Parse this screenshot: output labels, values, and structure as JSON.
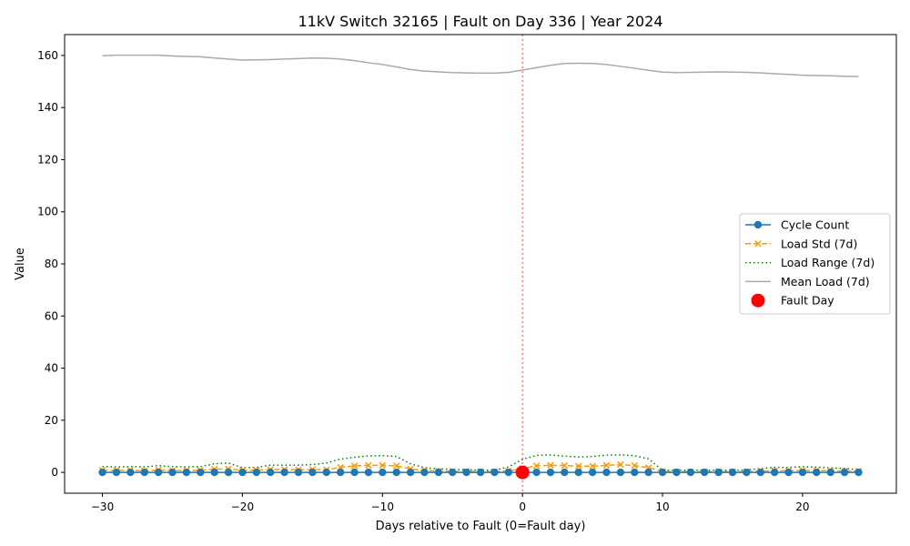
{
  "chart_data": {
    "type": "line",
    "title": "11kV Switch 32165 | Fault on Day 336 | Year 2024",
    "xlabel": "Days relative to Fault (0=Fault day)",
    "ylabel": "Value",
    "xlim": [
      -32.7,
      26.7
    ],
    "ylim": [
      -8.0,
      168.0
    ],
    "xticks": [
      -30,
      -20,
      -10,
      0,
      10,
      20
    ],
    "xtick_labels": [
      "−30",
      "−20",
      "−10",
      "0",
      "10",
      "20"
    ],
    "yticks": [
      0,
      20,
      40,
      60,
      80,
      100,
      120,
      140,
      160
    ],
    "grid": false,
    "legend_position": "center-right",
    "fault_line_x": 0,
    "colors": {
      "cycle_count": "#1f77b4",
      "load_std": "#ff9900",
      "load_range": "#008000",
      "mean_load": "#aaaaaa",
      "fault_day": "#ff0000",
      "fault_line": "#ff7f7f"
    },
    "x": [
      -30,
      -29,
      -28,
      -27,
      -26,
      -25,
      -24,
      -23,
      -22,
      -21,
      -20,
      -19,
      -18,
      -17,
      -16,
      -15,
      -14,
      -13,
      -12,
      -11,
      -10,
      -9,
      -8,
      -7,
      -6,
      -5,
      -4,
      -3,
      -2,
      -1,
      0,
      1,
      2,
      3,
      4,
      5,
      6,
      7,
      8,
      9,
      10,
      11,
      12,
      13,
      14,
      15,
      16,
      17,
      18,
      19,
      20,
      21,
      22,
      23,
      24
    ],
    "series": [
      {
        "name": "Cycle Count",
        "key": "cycle_count",
        "values": [
          0,
          0,
          0,
          0,
          0,
          0,
          0,
          0,
          0,
          0,
          0,
          0,
          0,
          0,
          0,
          0,
          0,
          0,
          0,
          0,
          0,
          0,
          0,
          0,
          0,
          0,
          0,
          0,
          0,
          0,
          0,
          0,
          0,
          0,
          0,
          0,
          0,
          0,
          0,
          0,
          0,
          0,
          0,
          0,
          0,
          0,
          0,
          0,
          0,
          0,
          0,
          0,
          0,
          0,
          0
        ]
      },
      {
        "name": "Load Std (7d)",
        "key": "load_std",
        "values": [
          0.8,
          0.7,
          0.8,
          0.6,
          0.9,
          0.7,
          0.7,
          0.8,
          1.2,
          1.3,
          0.8,
          0.8,
          1.1,
          1.1,
          1.0,
          1.1,
          1.0,
          1.9,
          2.5,
          2.7,
          2.7,
          2.5,
          1.3,
          0.7,
          0.5,
          0.4,
          0.4,
          0.3,
          0.3,
          0.5,
          1.5,
          2.5,
          2.7,
          2.6,
          2.4,
          2.4,
          2.7,
          3.0,
          2.6,
          1.8,
          0.4,
          0.3,
          0.3,
          0.3,
          0.3,
          0.3,
          0.3,
          0.5,
          0.6,
          0.6,
          0.7,
          0.7,
          0.6,
          0.5,
          0.5
        ]
      },
      {
        "name": "Load Range (7d)",
        "key": "load_range",
        "values": [
          2.2,
          2.1,
          2.2,
          2.1,
          2.6,
          2.2,
          2.1,
          2.2,
          3.3,
          3.6,
          1.8,
          1.9,
          2.8,
          2.8,
          2.8,
          3.0,
          3.6,
          5.1,
          5.8,
          6.3,
          6.4,
          6.1,
          3.3,
          1.8,
          1.3,
          1.2,
          1.0,
          0.8,
          0.8,
          2.1,
          5.0,
          6.5,
          6.7,
          6.2,
          5.9,
          6.1,
          6.6,
          6.7,
          6.4,
          5.2,
          0.8,
          0.8,
          0.8,
          0.8,
          0.8,
          0.8,
          0.9,
          1.5,
          1.9,
          1.9,
          2.2,
          2.0,
          1.7,
          1.5,
          1.0
        ]
      },
      {
        "name": "Mean Load (7d)",
        "key": "mean_load",
        "values": [
          159.9,
          160.1,
          160.1,
          160.1,
          160.1,
          159.8,
          159.6,
          159.5,
          159.0,
          158.6,
          158.2,
          158.3,
          158.4,
          158.6,
          158.8,
          159.0,
          158.9,
          158.6,
          158.0,
          157.2,
          156.5,
          155.6,
          154.6,
          154.0,
          153.7,
          153.4,
          153.3,
          153.2,
          153.2,
          153.5,
          154.4,
          155.3,
          156.2,
          156.9,
          157.0,
          156.9,
          156.5,
          155.8,
          155.1,
          154.3,
          153.6,
          153.4,
          153.5,
          153.6,
          153.7,
          153.6,
          153.5,
          153.3,
          153.0,
          152.7,
          152.4,
          152.3,
          152.2,
          152.0,
          151.9
        ]
      }
    ],
    "fault_point": {
      "name": "Fault Day",
      "x": 0,
      "y": 0
    },
    "legend": [
      "Cycle Count",
      "Load Std (7d)",
      "Load Range (7d)",
      "Mean Load (7d)",
      "Fault Day"
    ]
  }
}
